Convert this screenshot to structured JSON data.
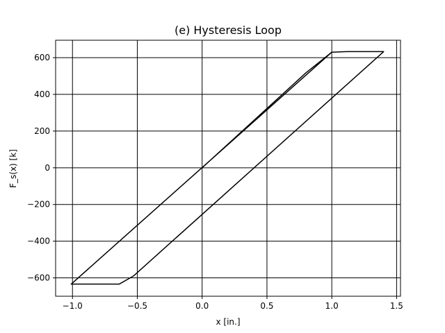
{
  "chart_data": {
    "type": "line",
    "title": "(e) Hysteresis Loop",
    "xlabel": "x [in.]",
    "ylabel": "F_s(x) [k]",
    "xlim": [
      -1.13,
      1.53
    ],
    "ylim": [
      -700,
      695
    ],
    "grid": true,
    "xticks": [
      -1.0,
      -0.5,
      0.0,
      0.5,
      1.0,
      1.5
    ],
    "xtick_labels": [
      "−1.0",
      "−0.5",
      "0.0",
      "0.5",
      "1.0",
      "1.5"
    ],
    "yticks": [
      -600,
      -400,
      -200,
      0,
      200,
      400,
      600
    ],
    "ytick_labels": [
      "−600",
      "−400",
      "−200",
      "0",
      "200",
      "400",
      "600"
    ],
    "series": [
      {
        "color": "#000000",
        "x": [
          0.0,
          0.8,
          0.0,
          0.8,
          0.0,
          0.8,
          0.0,
          0.8,
          1.0,
          1.12,
          1.4,
          -0.53,
          -0.64,
          -1.01,
          1.0
        ],
        "y": [
          0,
          517,
          0,
          517,
          0,
          517,
          0,
          517,
          630,
          633,
          633,
          -590,
          -634,
          -634,
          630
        ]
      }
    ]
  }
}
